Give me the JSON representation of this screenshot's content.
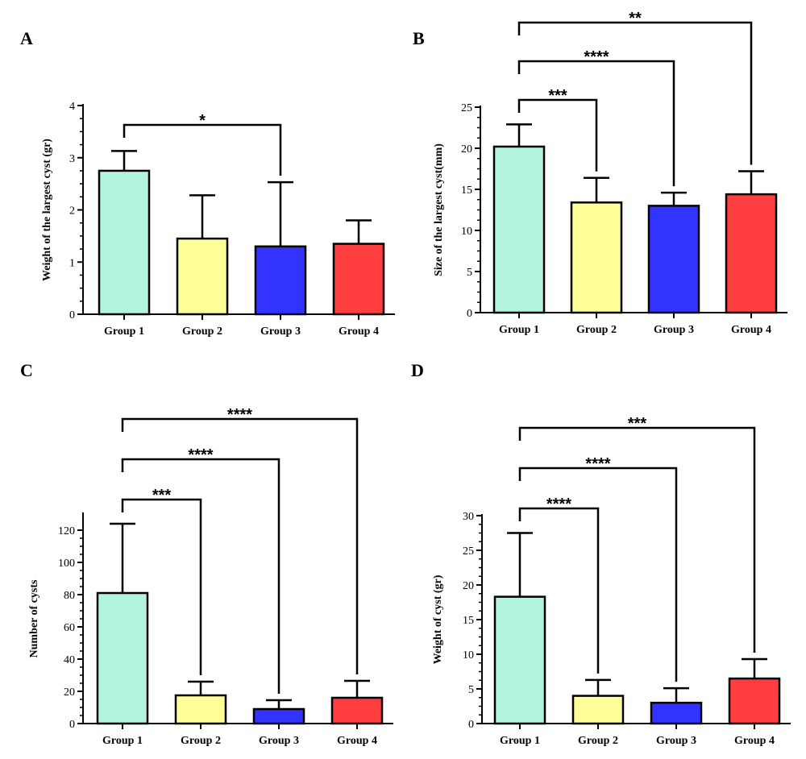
{
  "chart_data": [
    {
      "type": "bar",
      "panel": "A",
      "ylabel": "Weight of the largest cyst (gr)",
      "categories": [
        "Group 1",
        "Group 2",
        "Group 3",
        "Group 4"
      ],
      "values": [
        2.75,
        1.45,
        1.3,
        1.35
      ],
      "error_upper": [
        3.13,
        2.28,
        2.53,
        1.8
      ],
      "colors": [
        "#b3f5dc",
        "#ffff99",
        "#3333ff",
        "#ff3f3f"
      ],
      "ylim": [
        0,
        4
      ],
      "yticks": [
        0,
        1,
        2,
        3,
        4
      ],
      "significance": [
        {
          "from": 0,
          "to": 2,
          "label": "*"
        }
      ]
    },
    {
      "type": "bar",
      "panel": "B",
      "ylabel": "Size of the largest cyst(mm)",
      "categories": [
        "Group 1",
        "Group 2",
        "Group 3",
        "Group 4"
      ],
      "values": [
        20.2,
        13.4,
        13.0,
        14.4
      ],
      "error_upper": [
        22.9,
        16.4,
        14.6,
        17.2
      ],
      "colors": [
        "#b3f5dc",
        "#ffff99",
        "#3333ff",
        "#ff3f3f"
      ],
      "ylim": [
        0,
        25
      ],
      "yticks": [
        0,
        5,
        10,
        15,
        20,
        25
      ],
      "significance": [
        {
          "from": 0,
          "to": 1,
          "label": "***"
        },
        {
          "from": 0,
          "to": 2,
          "label": "****"
        },
        {
          "from": 0,
          "to": 3,
          "label": "**"
        }
      ]
    },
    {
      "type": "bar",
      "panel": "C",
      "ylabel": "Number of cysts",
      "categories": [
        "Group 1",
        "Group 2",
        "Group 3",
        "Group 4"
      ],
      "values": [
        81,
        17.5,
        9,
        16
      ],
      "error_upper": [
        124,
        26,
        14.5,
        26.5
      ],
      "colors": [
        "#b3f5dc",
        "#ffff99",
        "#3333ff",
        "#ff3f3f"
      ],
      "ylim": [
        0,
        130
      ],
      "yticks": [
        0,
        20,
        40,
        60,
        80,
        100,
        120
      ],
      "significance": [
        {
          "from": 0,
          "to": 1,
          "label": "***"
        },
        {
          "from": 0,
          "to": 2,
          "label": "****"
        },
        {
          "from": 0,
          "to": 3,
          "label": "****"
        }
      ]
    },
    {
      "type": "bar",
      "panel": "D",
      "ylabel": "Weight of cyst (gr)",
      "categories": [
        "Group 1",
        "Group 2",
        "Group 3",
        "Group 4"
      ],
      "values": [
        18.3,
        4.0,
        3.0,
        6.5
      ],
      "error_upper": [
        27.5,
        6.3,
        5.1,
        9.3
      ],
      "colors": [
        "#b3f5dc",
        "#ffff99",
        "#3333ff",
        "#ff3f3f"
      ],
      "ylim": [
        0,
        30
      ],
      "yticks": [
        0,
        5,
        10,
        15,
        20,
        25,
        30
      ],
      "significance": [
        {
          "from": 0,
          "to": 1,
          "label": "****"
        },
        {
          "from": 0,
          "to": 2,
          "label": "****"
        },
        {
          "from": 0,
          "to": 3,
          "label": "***"
        }
      ]
    }
  ]
}
